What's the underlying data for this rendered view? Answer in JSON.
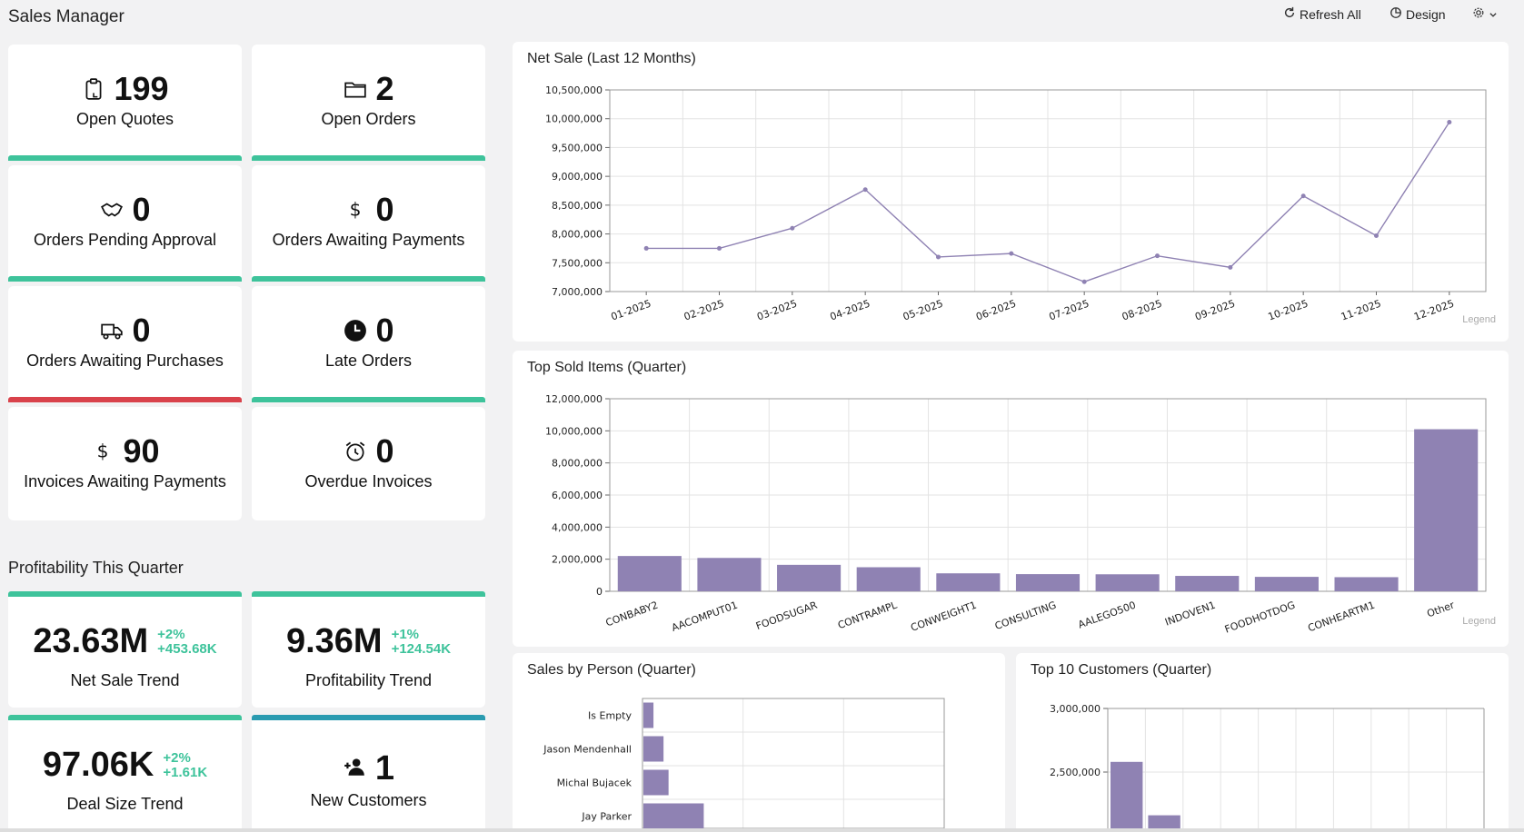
{
  "app": {
    "title": "Sales Manager"
  },
  "toolbar": {
    "refresh_label": "Refresh All",
    "design_label": "Design"
  },
  "kpis": [
    {
      "value": "199",
      "label": "Open Quotes",
      "icon": "clipboard-icon",
      "status_color": "#3ec39b"
    },
    {
      "value": "2",
      "label": "Open Orders",
      "icon": "folder-icon",
      "status_color": "#3ec39b"
    },
    {
      "value": "0",
      "label": "Orders Pending Approval",
      "icon": "handshake-icon",
      "status_color": "#3ec39b"
    },
    {
      "value": "0",
      "label": "Orders Awaiting Payments",
      "icon": "dollar-icon",
      "status_color": "#3ec39b"
    },
    {
      "value": "0",
      "label": "Orders Awaiting Purchases",
      "icon": "truck-icon",
      "status_color": "#d9424b"
    },
    {
      "value": "0",
      "label": "Late Orders",
      "icon": "clock-icon",
      "status_color": "#3ec39b"
    },
    {
      "value": "90",
      "label": "Invoices Awaiting Payments",
      "icon": "dollar-icon",
      "status_color": "#3ec39b"
    },
    {
      "value": "0",
      "label": "Overdue Invoices",
      "icon": "alarm-clock-icon",
      "status_color": "#3ec39b"
    }
  ],
  "profitability": {
    "title": "Profitability This Quarter",
    "cards": [
      {
        "value": "23.63M",
        "delta_pct": "+2%",
        "delta_abs": "+453.68K",
        "label": "Net Sale Trend",
        "status_color": "#3ec39b"
      },
      {
        "value": "9.36M",
        "delta_pct": "+1%",
        "delta_abs": "+124.54K",
        "label": "Profitability Trend",
        "status_color": "#3ec39b"
      },
      {
        "value": "97.06K",
        "delta_pct": "+2%",
        "delta_abs": "+1.61K",
        "label": "Deal Size Trend",
        "status_color": "#3ec39b"
      },
      {
        "value": "1",
        "label": "New Customers",
        "icon": "add-user-icon",
        "status_color": "#2a9bb0"
      }
    ]
  },
  "legend_label": "Legend",
  "colors": {
    "series": "#8f82b3",
    "accent_green": "#3ec39b",
    "accent_red": "#d9424b",
    "accent_teal": "#2a9bb0"
  },
  "chart_data": [
    {
      "type": "line",
      "title": "Net Sale (Last 12 Months)",
      "x": [
        "01-2025",
        "02-2025",
        "03-2025",
        "04-2025",
        "05-2025",
        "06-2025",
        "07-2025",
        "08-2025",
        "09-2025",
        "10-2025",
        "11-2025",
        "12-2025"
      ],
      "values": [
        7750000,
        7750000,
        8100000,
        8770000,
        7600000,
        7660000,
        7170000,
        7620000,
        7420000,
        8660000,
        7970000,
        9940000
      ],
      "ylim": [
        7000000,
        10500000
      ],
      "yticks": [
        "7,000,000",
        "7,500,000",
        "8,000,000",
        "8,500,000",
        "9,000,000",
        "9,500,000",
        "10,000,000",
        "10,500,000"
      ]
    },
    {
      "type": "bar",
      "title": "Top Sold Items (Quarter)",
      "categories": [
        "CONBABY2",
        "AACOMPUT01",
        "FOODSUGAR",
        "CONTRAMPL",
        "CONWEIGHT1",
        "CONSULTING",
        "AALEGO500",
        "INDOVEN1",
        "FOODHOTDOG",
        "CONHEARTM1",
        "Other"
      ],
      "values": [
        2200000,
        2080000,
        1650000,
        1500000,
        1120000,
        1070000,
        1060000,
        960000,
        900000,
        880000,
        10100000
      ],
      "ylim": [
        0,
        12000000
      ],
      "yticks": [
        "0",
        "2,000,000",
        "4,000,000",
        "6,000,000",
        "8,000,000",
        "10,000,000",
        "12,000,000"
      ]
    },
    {
      "type": "bar",
      "title": "Sales by Person (Quarter)",
      "categories": [
        "Is Empty",
        "Jason Mendenhall",
        "Michal Bujacek",
        "Jay Parker"
      ],
      "values": [
        1,
        2,
        2.5,
        6
      ],
      "xlim": [
        0,
        30
      ]
    },
    {
      "type": "bar",
      "title": "Top 10 Customers (Quarter)",
      "values": [
        2580000,
        2160000
      ],
      "ylim": [
        2000000,
        3000000
      ],
      "yticks": [
        "2,500,000",
        "3,000,000"
      ]
    }
  ]
}
